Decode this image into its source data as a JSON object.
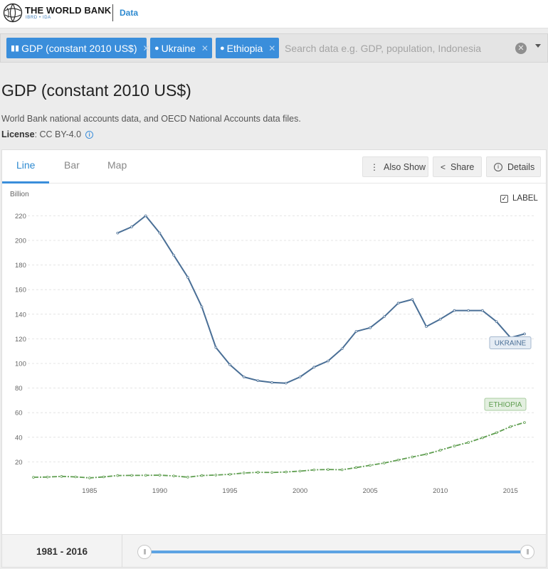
{
  "header": {
    "brand": "THE WORLD BANK",
    "brand_sub": "IBRD • IDA",
    "section": "Data"
  },
  "search": {
    "chips": [
      {
        "label": "GDP (constant 2010 US$)",
        "icon": "bar-chart-icon"
      },
      {
        "label": "Ukraine",
        "icon": "map-pin-icon"
      },
      {
        "label": "Ethiopia",
        "icon": "map-pin-icon"
      }
    ],
    "placeholder": "Search data e.g. GDP, population, Indonesia"
  },
  "page": {
    "title": "GDP (constant 2010 US$)",
    "source": "World Bank national accounts data, and OECD National Accounts data files.",
    "license_label": "License",
    "license_value": ": CC BY-4.0"
  },
  "tabs": [
    {
      "label": "Line",
      "active": true
    },
    {
      "label": "Bar",
      "active": false
    },
    {
      "label": "Map",
      "active": false
    }
  ],
  "toolbar": {
    "also_show": "Also Show",
    "share": "Share",
    "details": "Details"
  },
  "label_toggle": "LABEL",
  "colors": {
    "accent": "#3a8edb",
    "ukraine": "#4a6f96",
    "ethiopia": "#5f9e50"
  },
  "chart_data": {
    "type": "line",
    "ylabel": "Billion",
    "xlim": [
      1981,
      2016
    ],
    "ylim": [
      0,
      230
    ],
    "yticks": [
      20,
      40,
      60,
      80,
      100,
      120,
      140,
      160,
      180,
      200,
      220
    ],
    "xticks": [
      1985,
      1990,
      1995,
      2000,
      2005,
      2010,
      2015
    ],
    "grid": true,
    "series": [
      {
        "name": "UKRAINE",
        "x": [
          1987,
          1988,
          1989,
          1990,
          1991,
          1992,
          1993,
          1994,
          1995,
          1996,
          1997,
          1998,
          1999,
          2000,
          2001,
          2002,
          2003,
          2004,
          2005,
          2006,
          2007,
          2008,
          2009,
          2010,
          2011,
          2012,
          2013,
          2014,
          2015,
          2016
        ],
        "values": [
          206,
          211,
          220,
          206,
          188,
          170,
          146,
          113,
          99,
          89,
          86,
          84.5,
          84,
          89,
          97,
          102,
          112,
          126,
          129,
          138,
          149,
          152,
          130,
          136,
          143,
          143,
          143,
          134,
          121,
          124
        ]
      },
      {
        "name": "ETHIOPIA",
        "x": [
          1981,
          1982,
          1983,
          1984,
          1985,
          1986,
          1987,
          1988,
          1989,
          1990,
          1991,
          1992,
          1993,
          1994,
          1995,
          1996,
          1997,
          1998,
          1999,
          2000,
          2001,
          2002,
          2003,
          2004,
          2005,
          2006,
          2007,
          2008,
          2009,
          2010,
          2011,
          2012,
          2013,
          2014,
          2015,
          2016
        ],
        "values": [
          7.5,
          7.7,
          8.2,
          7.8,
          7.0,
          7.8,
          8.9,
          9.0,
          9.1,
          9.2,
          8.6,
          7.6,
          8.9,
          9.3,
          9.9,
          11.0,
          11.5,
          11.4,
          11.8,
          12.5,
          13.5,
          13.8,
          13.6,
          15.4,
          17.2,
          19.1,
          21.5,
          24.0,
          26.3,
          29.5,
          32.9,
          35.8,
          39.6,
          43.7,
          48.6,
          52.0
        ]
      }
    ]
  },
  "range": {
    "start": "1981",
    "sep": "-",
    "end": "2016"
  }
}
